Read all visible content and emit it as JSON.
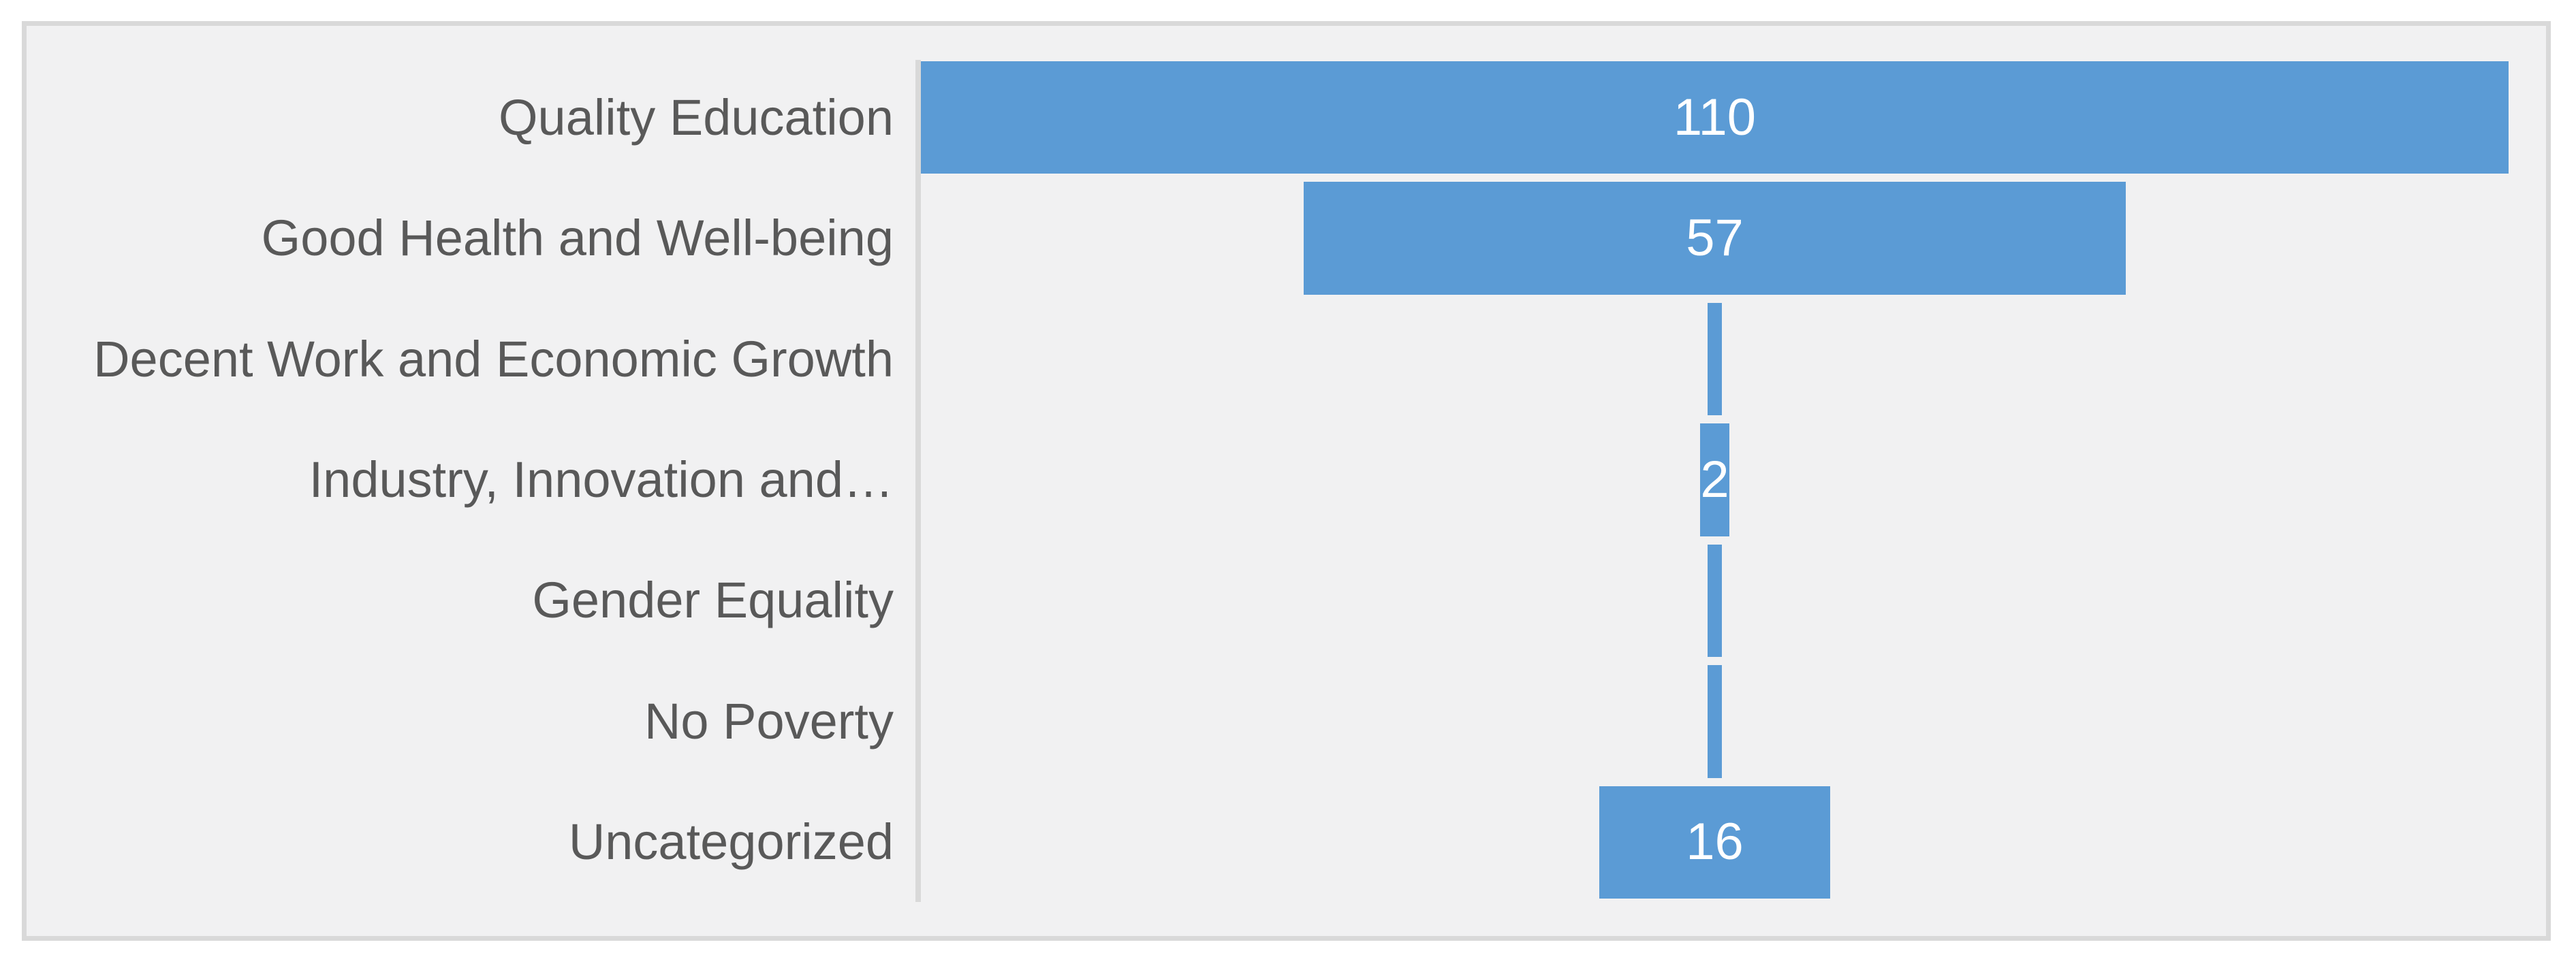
{
  "chart_data": {
    "type": "bar",
    "subtype": "funnel",
    "orientation": "horizontal-centered",
    "title": "",
    "legend_position": "none",
    "grid": "off",
    "categories": [
      "Quality Education",
      "Good Health and Well-being",
      "Decent Work and Economic Growth",
      "Industry, Innovation and…",
      "Gender Equality",
      "No Poverty",
      "Uncategorized"
    ],
    "values": [
      110,
      57,
      1,
      2,
      1,
      1,
      16
    ],
    "data_labels": [
      "110",
      "57",
      "",
      "2",
      "",
      "",
      "16"
    ],
    "xmax": 110,
    "colors": {
      "bar": "#5b9bd5",
      "category_label": "#595959",
      "data_label": "#ffffff",
      "plot_background": "#f1f1f2",
      "frame_border": "#d9d9d9",
      "axis_line": "#d9d9d9",
      "page_background": "#ffffff"
    }
  }
}
